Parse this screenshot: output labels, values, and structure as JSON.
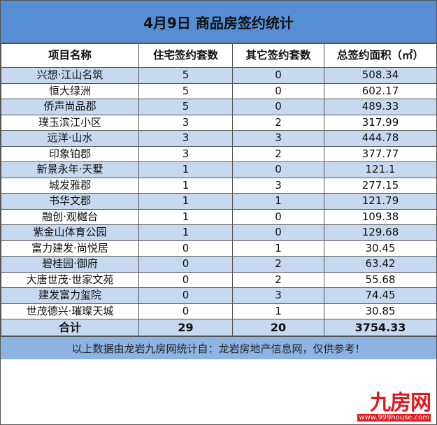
{
  "title": "4月9日 商品房签约统计",
  "headers": [
    "项目名称",
    "住宅签约套数",
    "其它签约套数",
    "总签约面积（㎡）"
  ],
  "rows": [
    [
      "兴想·江山名筑",
      "5",
      "0",
      "508.34"
    ],
    [
      "恒大绿洲",
      "5",
      "0",
      "602.17"
    ],
    [
      "侨声尚品郡",
      "5",
      "0",
      "489.33"
    ],
    [
      "璞玉滨江小区",
      "3",
      "2",
      "317.99"
    ],
    [
      "远洋·山水",
      "3",
      "3",
      "444.78"
    ],
    [
      "印象铂郡",
      "3",
      "2",
      "377.77"
    ],
    [
      "新景永年·天墅",
      "1",
      "0",
      "121.1"
    ],
    [
      "城发雅郡",
      "1",
      "3",
      "277.15"
    ],
    [
      "书华文郡",
      "1",
      "1",
      "121.79"
    ],
    [
      "融创·观樾台",
      "1",
      "0",
      "109.38"
    ],
    [
      "紫金山体育公园",
      "1",
      "0",
      "129.68"
    ],
    [
      "富力建发·尚悦居",
      "0",
      "1",
      "30.45"
    ],
    [
      "碧桂园·御府",
      "0",
      "2",
      "63.42"
    ],
    [
      "大唐世茂·世家文苑",
      "0",
      "2",
      "55.68"
    ],
    [
      "建发富力玺院",
      "0",
      "3",
      "74.45"
    ],
    [
      "世茂德兴·璀璨天城",
      "0",
      "1",
      "30.85"
    ]
  ],
  "total": [
    "合计",
    "29",
    "20",
    "3754.33"
  ],
  "footer": "以上数据由龙岩九房网统计自：龙岩房地产信息网，仅供参考！",
  "watermark": {
    "logo": "九房网",
    "url": "www.999house.com"
  },
  "colors": {
    "title_bg": "#558ed5",
    "stripe": "#c6d9f1",
    "footer_bg": "#8db4e2",
    "watermark": "#e0191f"
  }
}
